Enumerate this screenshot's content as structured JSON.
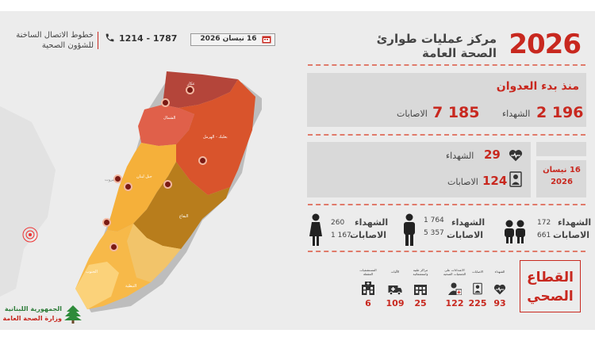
{
  "header": {
    "year": "2026",
    "title_line1": "مركز عمليات طوارئ",
    "title_line2": "الصحة العامة",
    "date": "16 نيسان 2026",
    "hotline_numbers": "1214 - 1787",
    "hotline_label_line1": "خطوط الاتصال الساخنة",
    "hotline_label_line2": "للشؤون الصحية"
  },
  "since_aggression": {
    "title": "منذ بدء العدوان",
    "martyrs_value": "2 196",
    "martyrs_label": "الشهداء",
    "injured_value": "7 185",
    "injured_label": "الاصابات"
  },
  "daily": {
    "date_line1": "16 نيسان",
    "date_line2": "2026",
    "martyrs_value": "29",
    "martyrs_label": "الشهداء",
    "injured_value": "124",
    "injured_label": "الاصابات"
  },
  "demographics": [
    {
      "group": "children-icon",
      "martyrs_label": "الشهداء",
      "martyrs": "172",
      "injured_label": "الاصابات",
      "injured": "661"
    },
    {
      "group": "man-icon",
      "martyrs_label": "الشهداء",
      "martyrs": "1 764",
      "injured_label": "الاصابات",
      "injured": "5 357"
    },
    {
      "group": "woman-icon",
      "martyrs_label": "الشهداء",
      "martyrs": "260",
      "injured_label": "الاصابات",
      "injured": "1 167"
    }
  ],
  "health_sector": {
    "title_line1": "القطاع",
    "title_line2": "الصحي",
    "items": [
      {
        "label": "الشهداء",
        "value": "93",
        "icon": "heartbeat-icon"
      },
      {
        "label": "الاصابات",
        "value": "225",
        "icon": "injured-icon"
      },
      {
        "label": "الاعتداءات على الجمعيات الصحية",
        "value": "122",
        "icon": "paramedic-icon"
      },
      {
        "label": "مراكز طبية واستشفائية",
        "value": "25",
        "icon": "hospital-building-icon"
      },
      {
        "label": "الآليات",
        "value": "109",
        "icon": "ambulance-icon"
      },
      {
        "label": "المستشفيات المقفلة",
        "value": "6",
        "icon": "closed-hospital-icon"
      }
    ]
  },
  "map": {
    "regions": [
      "عكار",
      "الشمال",
      "بعلبك - الهرمل",
      "جبل لبنان",
      "البقاع",
      "بيروت",
      "الجنوب",
      "النبطية"
    ]
  },
  "logo": {
    "line1": "الجمهورية اللبنانية",
    "line2": "وزارة الصحة العامة"
  },
  "colors": {
    "accent_red": "#c8281f",
    "panel_gray": "#d9d9d9",
    "akkar": "#b4453a",
    "north": "#e0604a",
    "baalbek": "#d9542c",
    "mount_lebanon": "#f5b03a",
    "bekaa": "#b87d1c",
    "beirut": "#f5b03a",
    "south": "#f7b949",
    "nabatieh": "#f2c46a"
  }
}
